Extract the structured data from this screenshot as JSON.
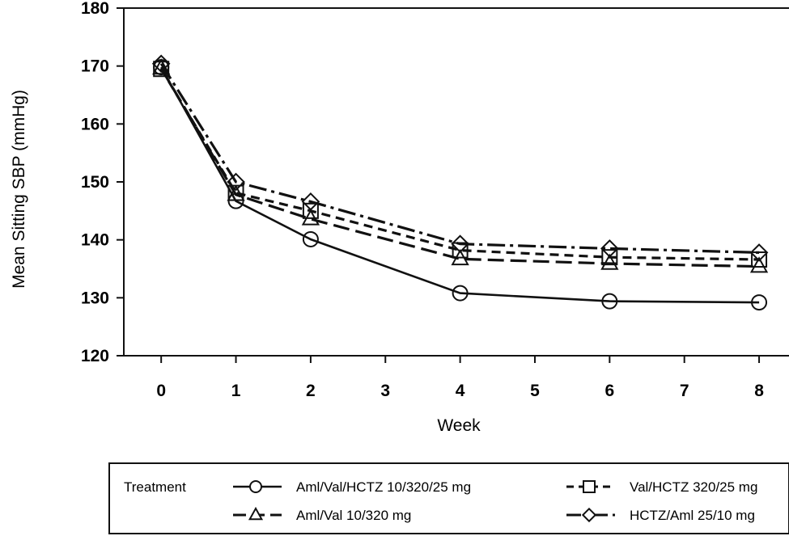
{
  "chart_data": {
    "type": "line",
    "xlabel": "Week",
    "ylabel": "Mean Sitting SBP (mmHg)",
    "xlim": [
      -0.5,
      8.4
    ],
    "ylim": [
      120,
      180
    ],
    "x_ticks": [
      0,
      1,
      2,
      3,
      4,
      5,
      6,
      7,
      8
    ],
    "y_ticks": [
      120,
      130,
      140,
      150,
      160,
      170,
      180
    ],
    "grid": false,
    "legend_position": "bottom",
    "legend_title": "Treatment",
    "series": [
      {
        "name": "Aml/Val/HCTZ 10/320/25  mg",
        "marker": "circle",
        "line_style": "solid",
        "x": [
          0,
          1,
          2,
          4,
          6,
          8
        ],
        "y": [
          169.8,
          146.7,
          140.1,
          130.8,
          129.4,
          129.2
        ]
      },
      {
        "name": "Aml/Val 10/320 mg",
        "marker": "triangle",
        "line_style": "long-dash",
        "x": [
          0,
          1,
          2,
          4,
          6,
          8
        ],
        "y": [
          169.6,
          147.8,
          143.6,
          136.7,
          135.9,
          135.4
        ]
      },
      {
        "name": "Val/HCTZ 320/25 mg",
        "marker": "square",
        "line_style": "short-dash",
        "x": [
          0,
          1,
          2,
          4,
          6,
          8
        ],
        "y": [
          169.5,
          148.1,
          145.0,
          138.2,
          137.0,
          136.6
        ]
      },
      {
        "name": "HCTZ/Aml 25/10 mg",
        "marker": "diamond",
        "line_style": "dash-dot",
        "x": [
          0,
          1,
          2,
          4,
          6,
          8
        ],
        "y": [
          170.4,
          150.0,
          146.6,
          139.3,
          138.5,
          137.8
        ]
      }
    ]
  }
}
